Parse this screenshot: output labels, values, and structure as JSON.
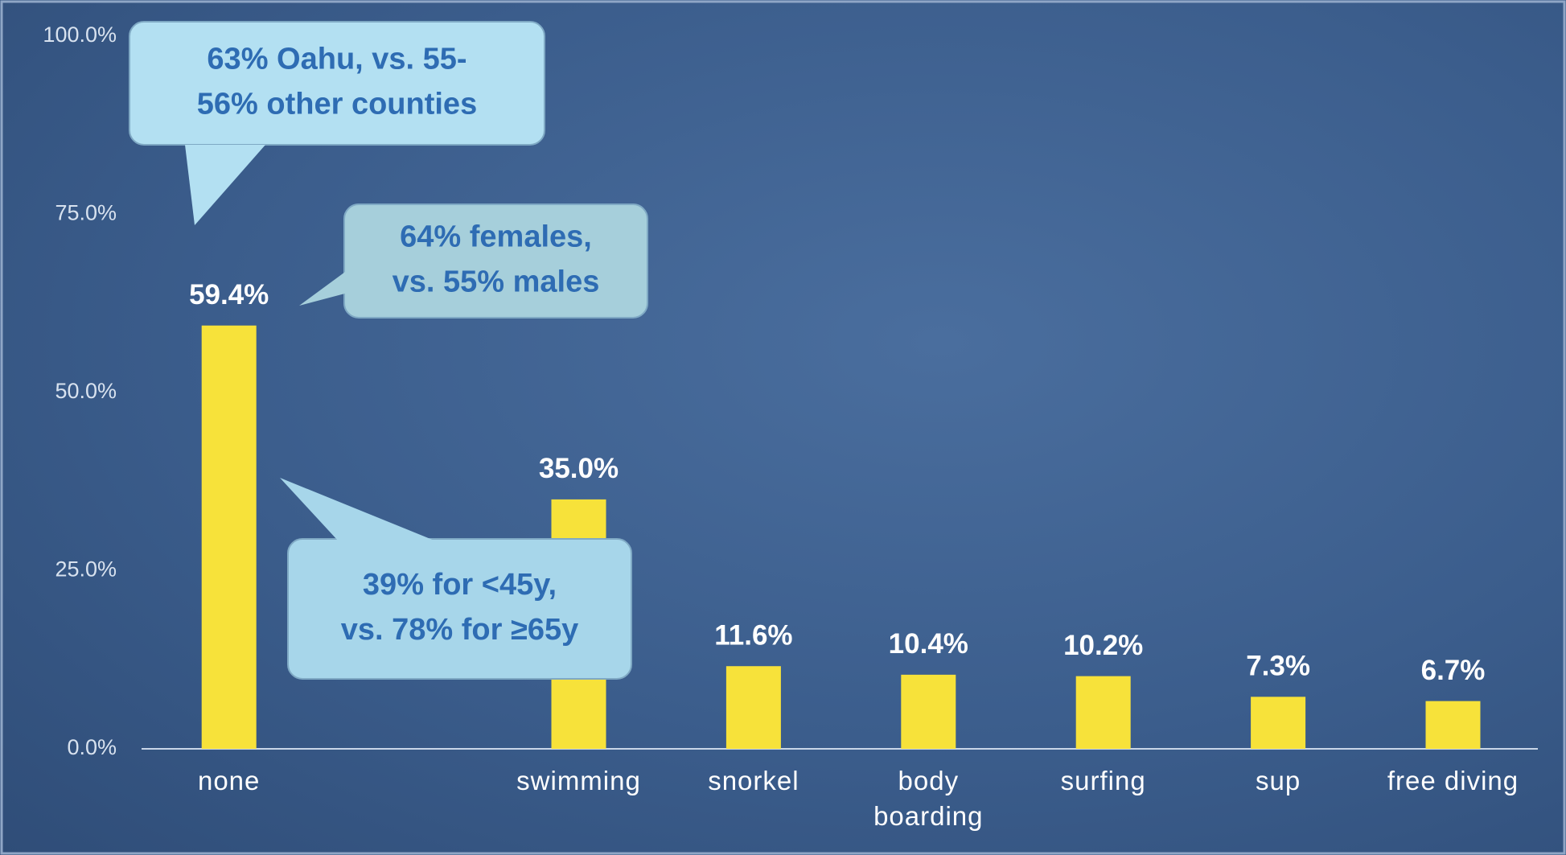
{
  "chart_data": {
    "type": "bar",
    "categories": [
      "none",
      null,
      "swimming",
      "snorkel",
      "body boarding",
      "surfing",
      "sup",
      "free diving"
    ],
    "values": [
      59.4,
      null,
      35.0,
      11.6,
      10.4,
      10.2,
      7.3,
      6.7
    ],
    "value_labels": [
      "59.4%",
      null,
      "35.0%",
      "11.6%",
      "10.4%",
      "10.2%",
      "7.3%",
      "6.7%"
    ],
    "color": "#f7e23a",
    "ylim": [
      0,
      100
    ],
    "yticks": [
      {
        "value": 0,
        "label": "0.0%"
      },
      {
        "value": 25,
        "label": "25.0%"
      },
      {
        "value": 50,
        "label": "50.0%"
      },
      {
        "value": 75,
        "label": "75.0%"
      },
      {
        "value": 100,
        "label": "100.0%"
      }
    ],
    "grid": false,
    "annotations": [
      {
        "lines": [
          "63% Oahu, vs. 55-",
          "56% other counties"
        ]
      },
      {
        "lines": [
          "64% females,",
          "vs. 55% males"
        ]
      },
      {
        "lines": [
          "39% for <45y,",
          "vs. 78% for ≥65y"
        ]
      }
    ]
  }
}
